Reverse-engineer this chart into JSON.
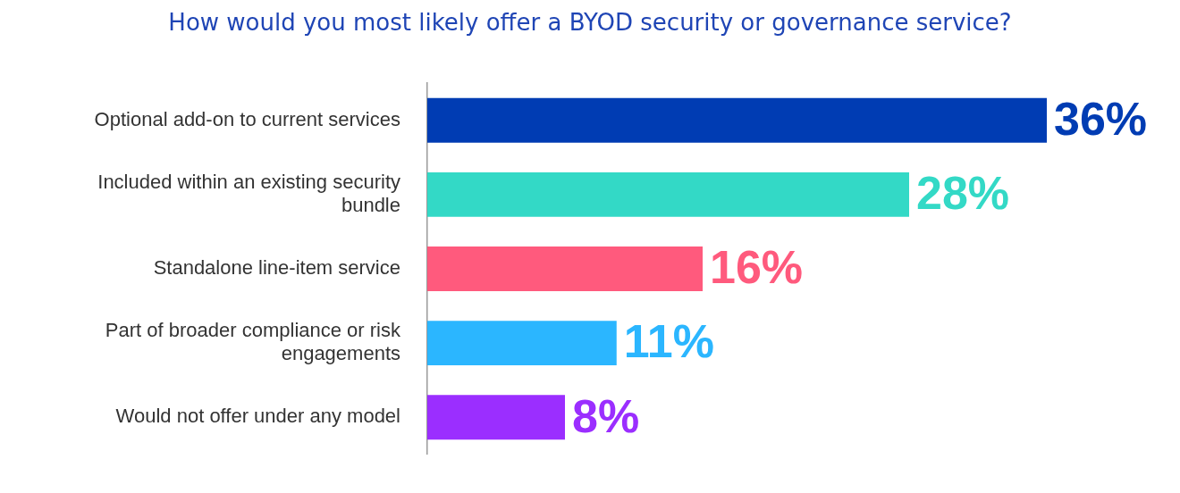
{
  "chart_data": {
    "type": "bar",
    "orientation": "horizontal",
    "title": "How would you most likely offer a BYOD security or governance service?",
    "categories": [
      "Optional add-on to current services",
      "Included within an existing security bundle",
      "Standalone line-item service",
      "Part of broader compliance or risk engagements",
      "Would not offer under any model"
    ],
    "values": [
      36,
      28,
      16,
      11,
      8
    ],
    "colors": [
      "#003cb3",
      "#33d9c6",
      "#ff5a7d",
      "#2bb6ff",
      "#9b2eff"
    ],
    "value_labels": [
      "36%",
      "28%",
      "16%",
      "11%",
      "8%"
    ],
    "grid": false,
    "legend": false,
    "tick_labels": "y"
  }
}
